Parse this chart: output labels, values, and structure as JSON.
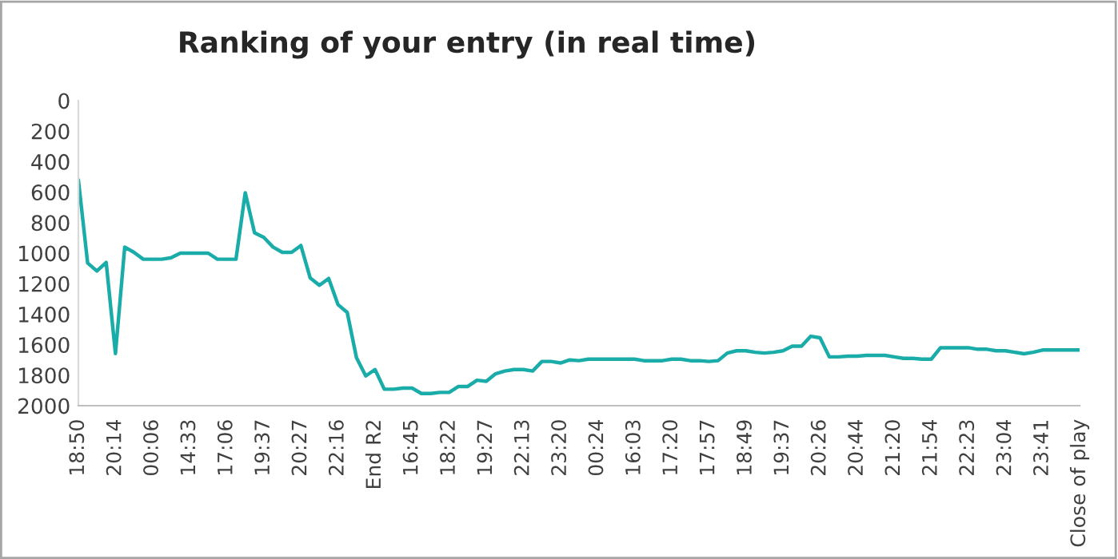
{
  "chart_data": {
    "type": "line",
    "title": "Ranking of your entry (in real time)",
    "categories": [
      "18:50",
      null,
      null,
      null,
      "20:14",
      null,
      null,
      null,
      "00:06",
      null,
      null,
      null,
      "14:33",
      null,
      null,
      null,
      "17:06",
      null,
      null,
      null,
      "19:37",
      null,
      null,
      null,
      "20:27",
      null,
      null,
      null,
      "22:16",
      null,
      null,
      null,
      "End R2",
      null,
      null,
      null,
      "16:45",
      null,
      null,
      null,
      "18:22",
      null,
      null,
      null,
      "19:27",
      null,
      null,
      null,
      "22:13",
      null,
      null,
      null,
      "23:20",
      null,
      null,
      null,
      "00:24",
      null,
      null,
      null,
      "16:03",
      null,
      null,
      null,
      "17:20",
      null,
      null,
      null,
      "17:57",
      null,
      null,
      null,
      "18:49",
      null,
      null,
      null,
      "19:37",
      null,
      null,
      null,
      "20:26",
      null,
      null,
      null,
      "20:44",
      null,
      null,
      null,
      "21:20",
      null,
      null,
      null,
      "21:54",
      null,
      null,
      null,
      "22:23",
      null,
      null,
      null,
      "23:04",
      null,
      null,
      null,
      "23:41",
      null,
      null,
      null,
      "Close of play"
    ],
    "series": [
      {
        "color": "#1aaca8",
        "values": [
          520,
          1065,
          1117,
          1061,
          1658,
          960,
          995,
          1040,
          1040,
          1040,
          1030,
          1000,
          1000,
          1000,
          1000,
          1040,
          1040,
          1040,
          604,
          866,
          897,
          960,
          995,
          995,
          950,
          1162,
          1211,
          1166,
          1337,
          1389,
          1686,
          1805,
          1763,
          1892,
          1892,
          1885,
          1885,
          1920,
          1920,
          1913,
          1913,
          1874,
          1874,
          1833,
          1840,
          1791,
          1773,
          1763,
          1763,
          1773,
          1710,
          1710,
          1720,
          1700,
          1705,
          1695,
          1695,
          1695,
          1695,
          1695,
          1695,
          1705,
          1705,
          1705,
          1695,
          1695,
          1705,
          1705,
          1710,
          1705,
          1655,
          1640,
          1640,
          1650,
          1655,
          1650,
          1640,
          1610,
          1610,
          1545,
          1555,
          1680,
          1680,
          1675,
          1675,
          1670,
          1670,
          1670,
          1680,
          1690,
          1690,
          1695,
          1695,
          1620,
          1620,
          1620,
          1620,
          1630,
          1630,
          1640,
          1640,
          1650,
          1660,
          1650,
          1635,
          1635,
          1635,
          1635,
          1635
        ]
      }
    ],
    "ylim": [
      2000,
      0
    ],
    "yticks": [
      0,
      200,
      400,
      600,
      800,
      1000,
      1200,
      1400,
      1600,
      1800,
      2000
    ],
    "grid": false,
    "legend": false,
    "marker": "none",
    "line_style": "solid"
  }
}
